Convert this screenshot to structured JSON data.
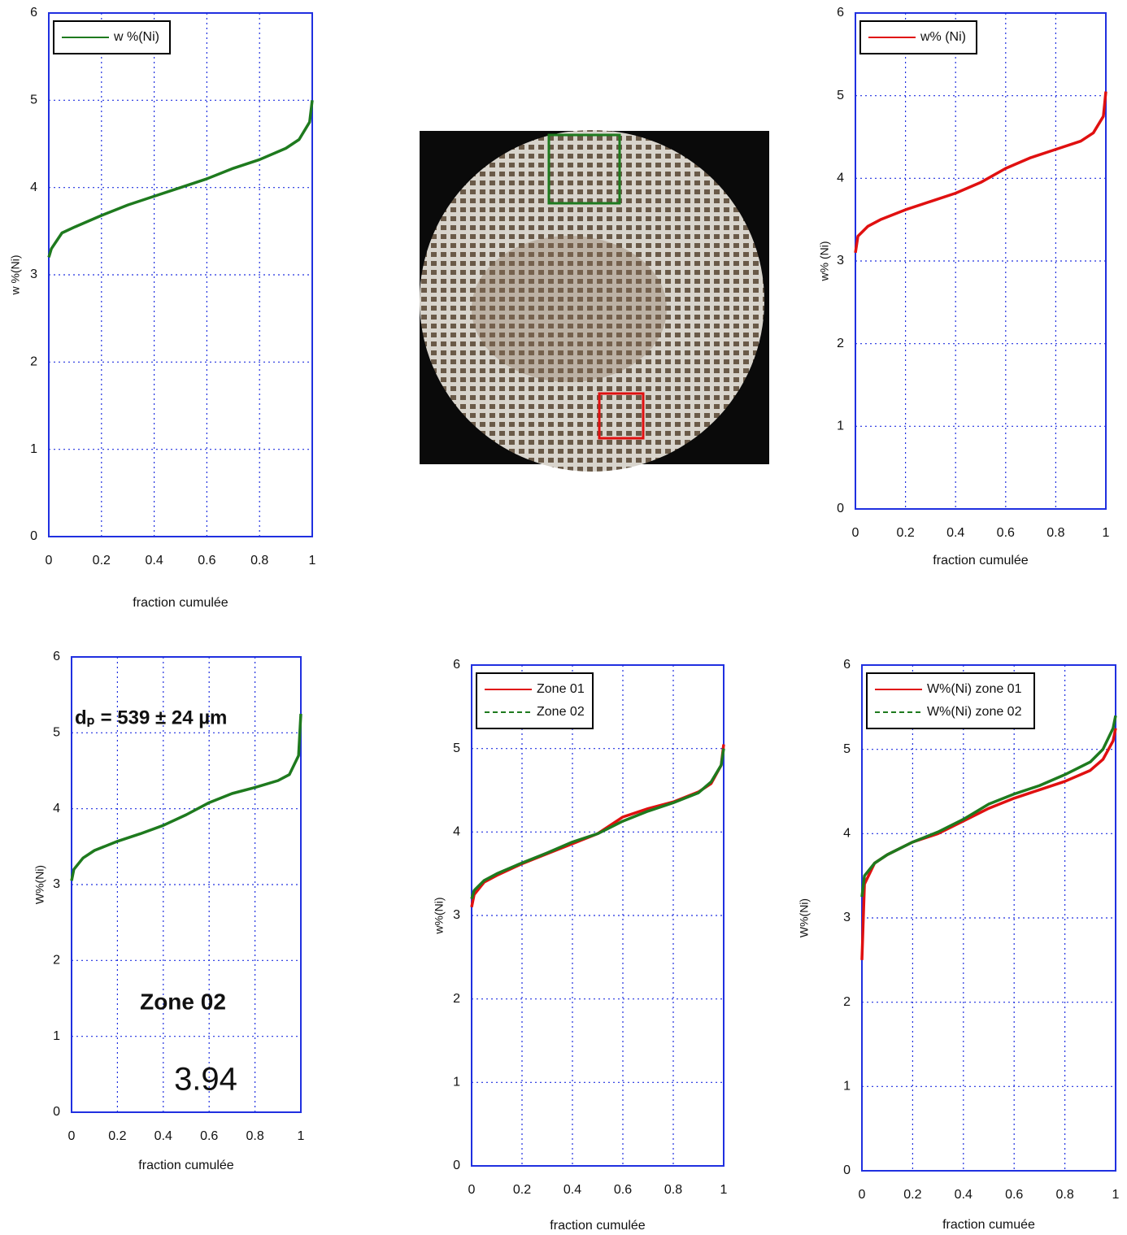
{
  "chart_data": [
    {
      "type": "line",
      "xlabel": "fraction cumulée",
      "ylabel": "w %(Ni)",
      "xlim": [
        0,
        1
      ],
      "ylim": [
        0,
        6
      ],
      "xticks": [
        0,
        0.2,
        0.4,
        0.6,
        0.8,
        1
      ],
      "yticks": [
        0,
        1,
        2,
        3,
        4,
        5,
        6
      ],
      "grid": true,
      "legend": "upper left",
      "x": [
        0,
        0.01,
        0.05,
        0.1,
        0.2,
        0.3,
        0.4,
        0.5,
        0.6,
        0.7,
        0.8,
        0.9,
        0.95,
        0.99,
        1
      ],
      "series": [
        {
          "name": "w %(Ni)",
          "color": "#1e7a1e",
          "values": [
            3.2,
            3.3,
            3.48,
            3.55,
            3.68,
            3.8,
            3.9,
            4.0,
            4.1,
            4.22,
            4.32,
            4.45,
            4.55,
            4.75,
            5.0
          ]
        }
      ]
    },
    {
      "type": "line",
      "xlabel": "fraction cumulée",
      "ylabel": "w% (Ni)",
      "xlim": [
        0,
        1
      ],
      "ylim": [
        0,
        6
      ],
      "xticks": [
        0,
        0.2,
        0.4,
        0.6,
        0.8,
        1
      ],
      "yticks": [
        0,
        1,
        2,
        3,
        4,
        5,
        6
      ],
      "grid": true,
      "legend": "upper left",
      "x": [
        0,
        0.01,
        0.05,
        0.1,
        0.2,
        0.3,
        0.4,
        0.5,
        0.6,
        0.7,
        0.8,
        0.9,
        0.95,
        0.99,
        1
      ],
      "series": [
        {
          "name": "w% (Ni)",
          "color": "#e01010",
          "values": [
            3.1,
            3.3,
            3.42,
            3.5,
            3.62,
            3.72,
            3.82,
            3.95,
            4.12,
            4.25,
            4.35,
            4.45,
            4.55,
            4.75,
            5.05
          ]
        }
      ]
    },
    {
      "type": "line",
      "xlabel": "fraction cumulée",
      "ylabel": "W%(Ni)",
      "xlim": [
        0,
        1
      ],
      "ylim": [
        0,
        6
      ],
      "xticks": [
        0,
        0.2,
        0.4,
        0.6,
        0.8,
        1
      ],
      "yticks": [
        0,
        1,
        2,
        3,
        4,
        5,
        6
      ],
      "grid": true,
      "annotations": [
        "dₚ = 539 ± 24 µm",
        "Zone 02",
        "3.94"
      ],
      "x": [
        0,
        0.01,
        0.05,
        0.1,
        0.2,
        0.3,
        0.4,
        0.5,
        0.6,
        0.7,
        0.8,
        0.9,
        0.95,
        0.99,
        1
      ],
      "series": [
        {
          "name": "W%(Ni)",
          "color": "#1e7a1e",
          "values": [
            3.05,
            3.2,
            3.35,
            3.45,
            3.57,
            3.67,
            3.78,
            3.92,
            4.08,
            4.2,
            4.28,
            4.37,
            4.45,
            4.7,
            5.25
          ]
        }
      ]
    },
    {
      "type": "line",
      "xlabel": "fraction cumulée",
      "ylabel": "w%(Ni)",
      "xlim": [
        0,
        1
      ],
      "ylim": [
        0,
        6
      ],
      "xticks": [
        0,
        0.2,
        0.4,
        0.6,
        0.8,
        1
      ],
      "yticks": [
        0,
        1,
        2,
        3,
        4,
        5,
        6
      ],
      "grid": true,
      "legend": "upper left",
      "x": [
        0,
        0.01,
        0.05,
        0.1,
        0.2,
        0.3,
        0.4,
        0.5,
        0.6,
        0.7,
        0.8,
        0.9,
        0.95,
        0.99,
        1
      ],
      "series": [
        {
          "name": "Zone 01",
          "color": "#e01010",
          "values": [
            3.1,
            3.25,
            3.4,
            3.48,
            3.62,
            3.74,
            3.86,
            3.98,
            4.18,
            4.28,
            4.36,
            4.48,
            4.58,
            4.8,
            5.05
          ]
        },
        {
          "name": "Zone 02",
          "color": "#1e7a1e",
          "values": [
            3.2,
            3.3,
            3.42,
            3.5,
            3.63,
            3.75,
            3.88,
            3.98,
            4.13,
            4.25,
            4.35,
            4.47,
            4.6,
            4.8,
            5.0
          ]
        }
      ]
    },
    {
      "type": "line",
      "xlabel": "fraction cumuée",
      "ylabel": "W%(Ni)",
      "xlim": [
        0,
        1
      ],
      "ylim": [
        0,
        6
      ],
      "xticks": [
        0,
        0.2,
        0.4,
        0.6,
        0.8,
        1
      ],
      "yticks": [
        0,
        1,
        2,
        3,
        4,
        5,
        6
      ],
      "grid": true,
      "legend": "upper left",
      "x": [
        0,
        0.01,
        0.05,
        0.1,
        0.2,
        0.3,
        0.4,
        0.5,
        0.6,
        0.7,
        0.8,
        0.9,
        0.95,
        0.99,
        1
      ],
      "series": [
        {
          "name": "W%(Ni) zone 01",
          "color": "#e01010",
          "values": [
            2.5,
            3.4,
            3.65,
            3.75,
            3.9,
            4.0,
            4.15,
            4.3,
            4.42,
            4.52,
            4.62,
            4.75,
            4.88,
            5.1,
            5.25
          ]
        },
        {
          "name": "W%(Ni) zone 02",
          "color": "#1e7a1e",
          "values": [
            3.25,
            3.5,
            3.65,
            3.75,
            3.9,
            4.02,
            4.17,
            4.35,
            4.47,
            4.57,
            4.7,
            4.85,
            5.0,
            5.25,
            5.4
          ]
        }
      ]
    }
  ]
}
